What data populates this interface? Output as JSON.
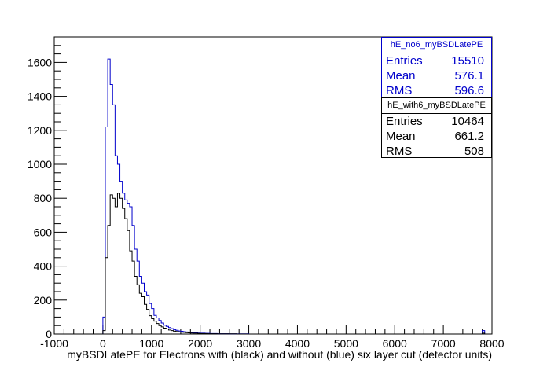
{
  "chart_data": {
    "type": "histogram",
    "xlabel": "myBSDLatePE for Electrons with (black) and without (blue) six layer cut (detector units)",
    "ylabel": "",
    "xlim": [
      -1000,
      8000
    ],
    "ylim": [
      0,
      1750
    ],
    "x_ticks": [
      "-1000",
      "0",
      "1000",
      "2000",
      "3000",
      "4000",
      "5000",
      "6000",
      "7000",
      "8000"
    ],
    "y_ticks": [
      "0",
      "200",
      "400",
      "600",
      "800",
      "1000",
      "1200",
      "1400",
      "1600"
    ],
    "bin_start": 0,
    "bin_width": 50,
    "colors": {
      "blue": "#0000cc",
      "black": "#000000"
    },
    "series": [
      {
        "name": "hE_no6_myBSDLatePE",
        "color": "blue",
        "values": [
          100,
          1220,
          1620,
          1470,
          1350,
          1050,
          1000,
          900,
          830,
          790,
          770,
          750,
          640,
          500,
          430,
          340,
          300,
          250,
          230,
          180,
          150,
          110,
          95,
          80,
          65,
          52,
          45,
          38,
          32,
          26,
          22,
          18,
          16,
          14,
          12,
          10,
          9,
          8,
          7,
          6,
          5,
          5,
          4,
          4,
          3,
          3,
          3,
          2,
          2,
          2,
          2,
          2,
          1,
          1,
          1,
          1,
          1,
          1,
          1,
          1
        ],
        "extra_bin": {
          "x": 7800,
          "value": 20
        },
        "stats": {
          "title": "hE_no6_myBSDLatePE",
          "entries_label": "Entries",
          "entries": "15510",
          "mean_label": "Mean",
          "mean": "576.1",
          "rms_label": "RMS",
          "rms": "596.6"
        }
      },
      {
        "name": "hE_with6_myBSDLatePE",
        "color": "black",
        "values": [
          20,
          450,
          640,
          820,
          800,
          750,
          830,
          800,
          740,
          680,
          610,
          490,
          430,
          340,
          290,
          240,
          220,
          175,
          145,
          108,
          90,
          76,
          62,
          50,
          42,
          35,
          30,
          24,
          20,
          17,
          15,
          13,
          11,
          10,
          8,
          7,
          6,
          5,
          5,
          4,
          3,
          3,
          3,
          2,
          2,
          2,
          2,
          1,
          1,
          1,
          1,
          1,
          1,
          1,
          1,
          0,
          0,
          0,
          0,
          0
        ],
        "extra_bin": {
          "x": 7800,
          "value": 5
        },
        "stats": {
          "title": "hE_with6_myBSDLatePE",
          "entries_label": "Entries",
          "entries": "10464",
          "mean_label": "Mean",
          "mean": "661.2",
          "rms_label": "RMS",
          "rms": "508"
        }
      }
    ]
  }
}
